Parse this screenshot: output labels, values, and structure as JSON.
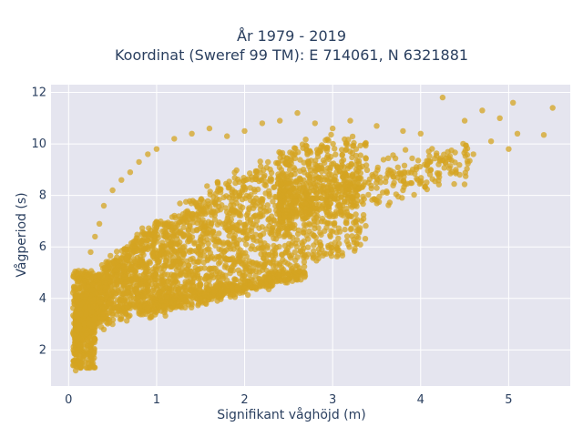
{
  "chart_data": {
    "type": "scatter",
    "title_lines": [
      "År 1979 - 2019",
      "Koordinat (Sweref 99 TM): E 714061, N 6321881"
    ],
    "xlabel": "Signifikant våghöjd (m)",
    "ylabel": "Vågperiod (s)",
    "xlim": [
      -0.2,
      5.7
    ],
    "ylim": [
      0.6,
      12.3
    ],
    "xticks": [
      0,
      1,
      2,
      3,
      4,
      5
    ],
    "yticks": [
      2,
      4,
      6,
      8,
      10,
      12
    ],
    "grid": true,
    "legend": "none",
    "marker_color": "#d4a421",
    "plot_background": "#e5e5ef",
    "description_of_distribution": "dense cloud of hourly observations; period rises from ~1.5–4 s at 0.1 m to ~9–11 s at 3–5 m, with a secondary lower branch near 4–5 s for heights 1–2.5 m",
    "points": [
      [
        0.05,
        1.4
      ],
      [
        0.08,
        1.2
      ],
      [
        0.1,
        1.6
      ],
      [
        0.12,
        2.0
      ],
      [
        0.15,
        2.4
      ],
      [
        0.18,
        3.0
      ],
      [
        0.2,
        3.4
      ],
      [
        0.25,
        5.8
      ],
      [
        0.3,
        6.4
      ],
      [
        0.35,
        6.9
      ],
      [
        0.4,
        7.6
      ],
      [
        0.5,
        8.2
      ],
      [
        0.6,
        8.6
      ],
      [
        0.7,
        8.9
      ],
      [
        0.8,
        9.3
      ],
      [
        0.9,
        9.6
      ],
      [
        1.0,
        9.8
      ],
      [
        1.2,
        10.2
      ],
      [
        1.4,
        10.4
      ],
      [
        1.6,
        10.6
      ],
      [
        1.8,
        10.3
      ],
      [
        2.0,
        10.5
      ],
      [
        2.2,
        10.8
      ],
      [
        2.4,
        10.9
      ],
      [
        2.6,
        11.2
      ],
      [
        2.8,
        10.8
      ],
      [
        3.0,
        10.6
      ],
      [
        3.2,
        10.9
      ],
      [
        3.5,
        10.7
      ],
      [
        3.8,
        10.5
      ],
      [
        4.0,
        10.4
      ],
      [
        4.25,
        11.8
      ],
      [
        4.5,
        10.9
      ],
      [
        4.7,
        11.3
      ],
      [
        4.9,
        11.0
      ],
      [
        5.05,
        11.6
      ],
      [
        5.1,
        10.4
      ],
      [
        5.4,
        10.35
      ],
      [
        5.5,
        11.4
      ],
      [
        4.6,
        9.6
      ],
      [
        4.8,
        10.1
      ],
      [
        5.0,
        9.8
      ],
      [
        0.3,
        2.4
      ],
      [
        0.4,
        2.8
      ],
      [
        0.5,
        3.0
      ],
      [
        0.6,
        3.2
      ],
      [
        0.8,
        3.5
      ],
      [
        1.0,
        3.8
      ],
      [
        1.2,
        4.0
      ],
      [
        1.4,
        4.3
      ],
      [
        1.6,
        4.5
      ],
      [
        1.8,
        4.7
      ],
      [
        2.0,
        4.9
      ],
      [
        2.2,
        5.1
      ],
      [
        2.4,
        5.3
      ],
      [
        2.6,
        5.6
      ],
      [
        2.7,
        5.6
      ],
      [
        3.0,
        6.6
      ],
      [
        3.2,
        7.2
      ],
      [
        3.5,
        7.8
      ],
      [
        3.8,
        8.2
      ],
      [
        4.0,
        8.5
      ],
      [
        4.2,
        8.8
      ],
      [
        4.4,
        9.0
      ]
    ]
  }
}
